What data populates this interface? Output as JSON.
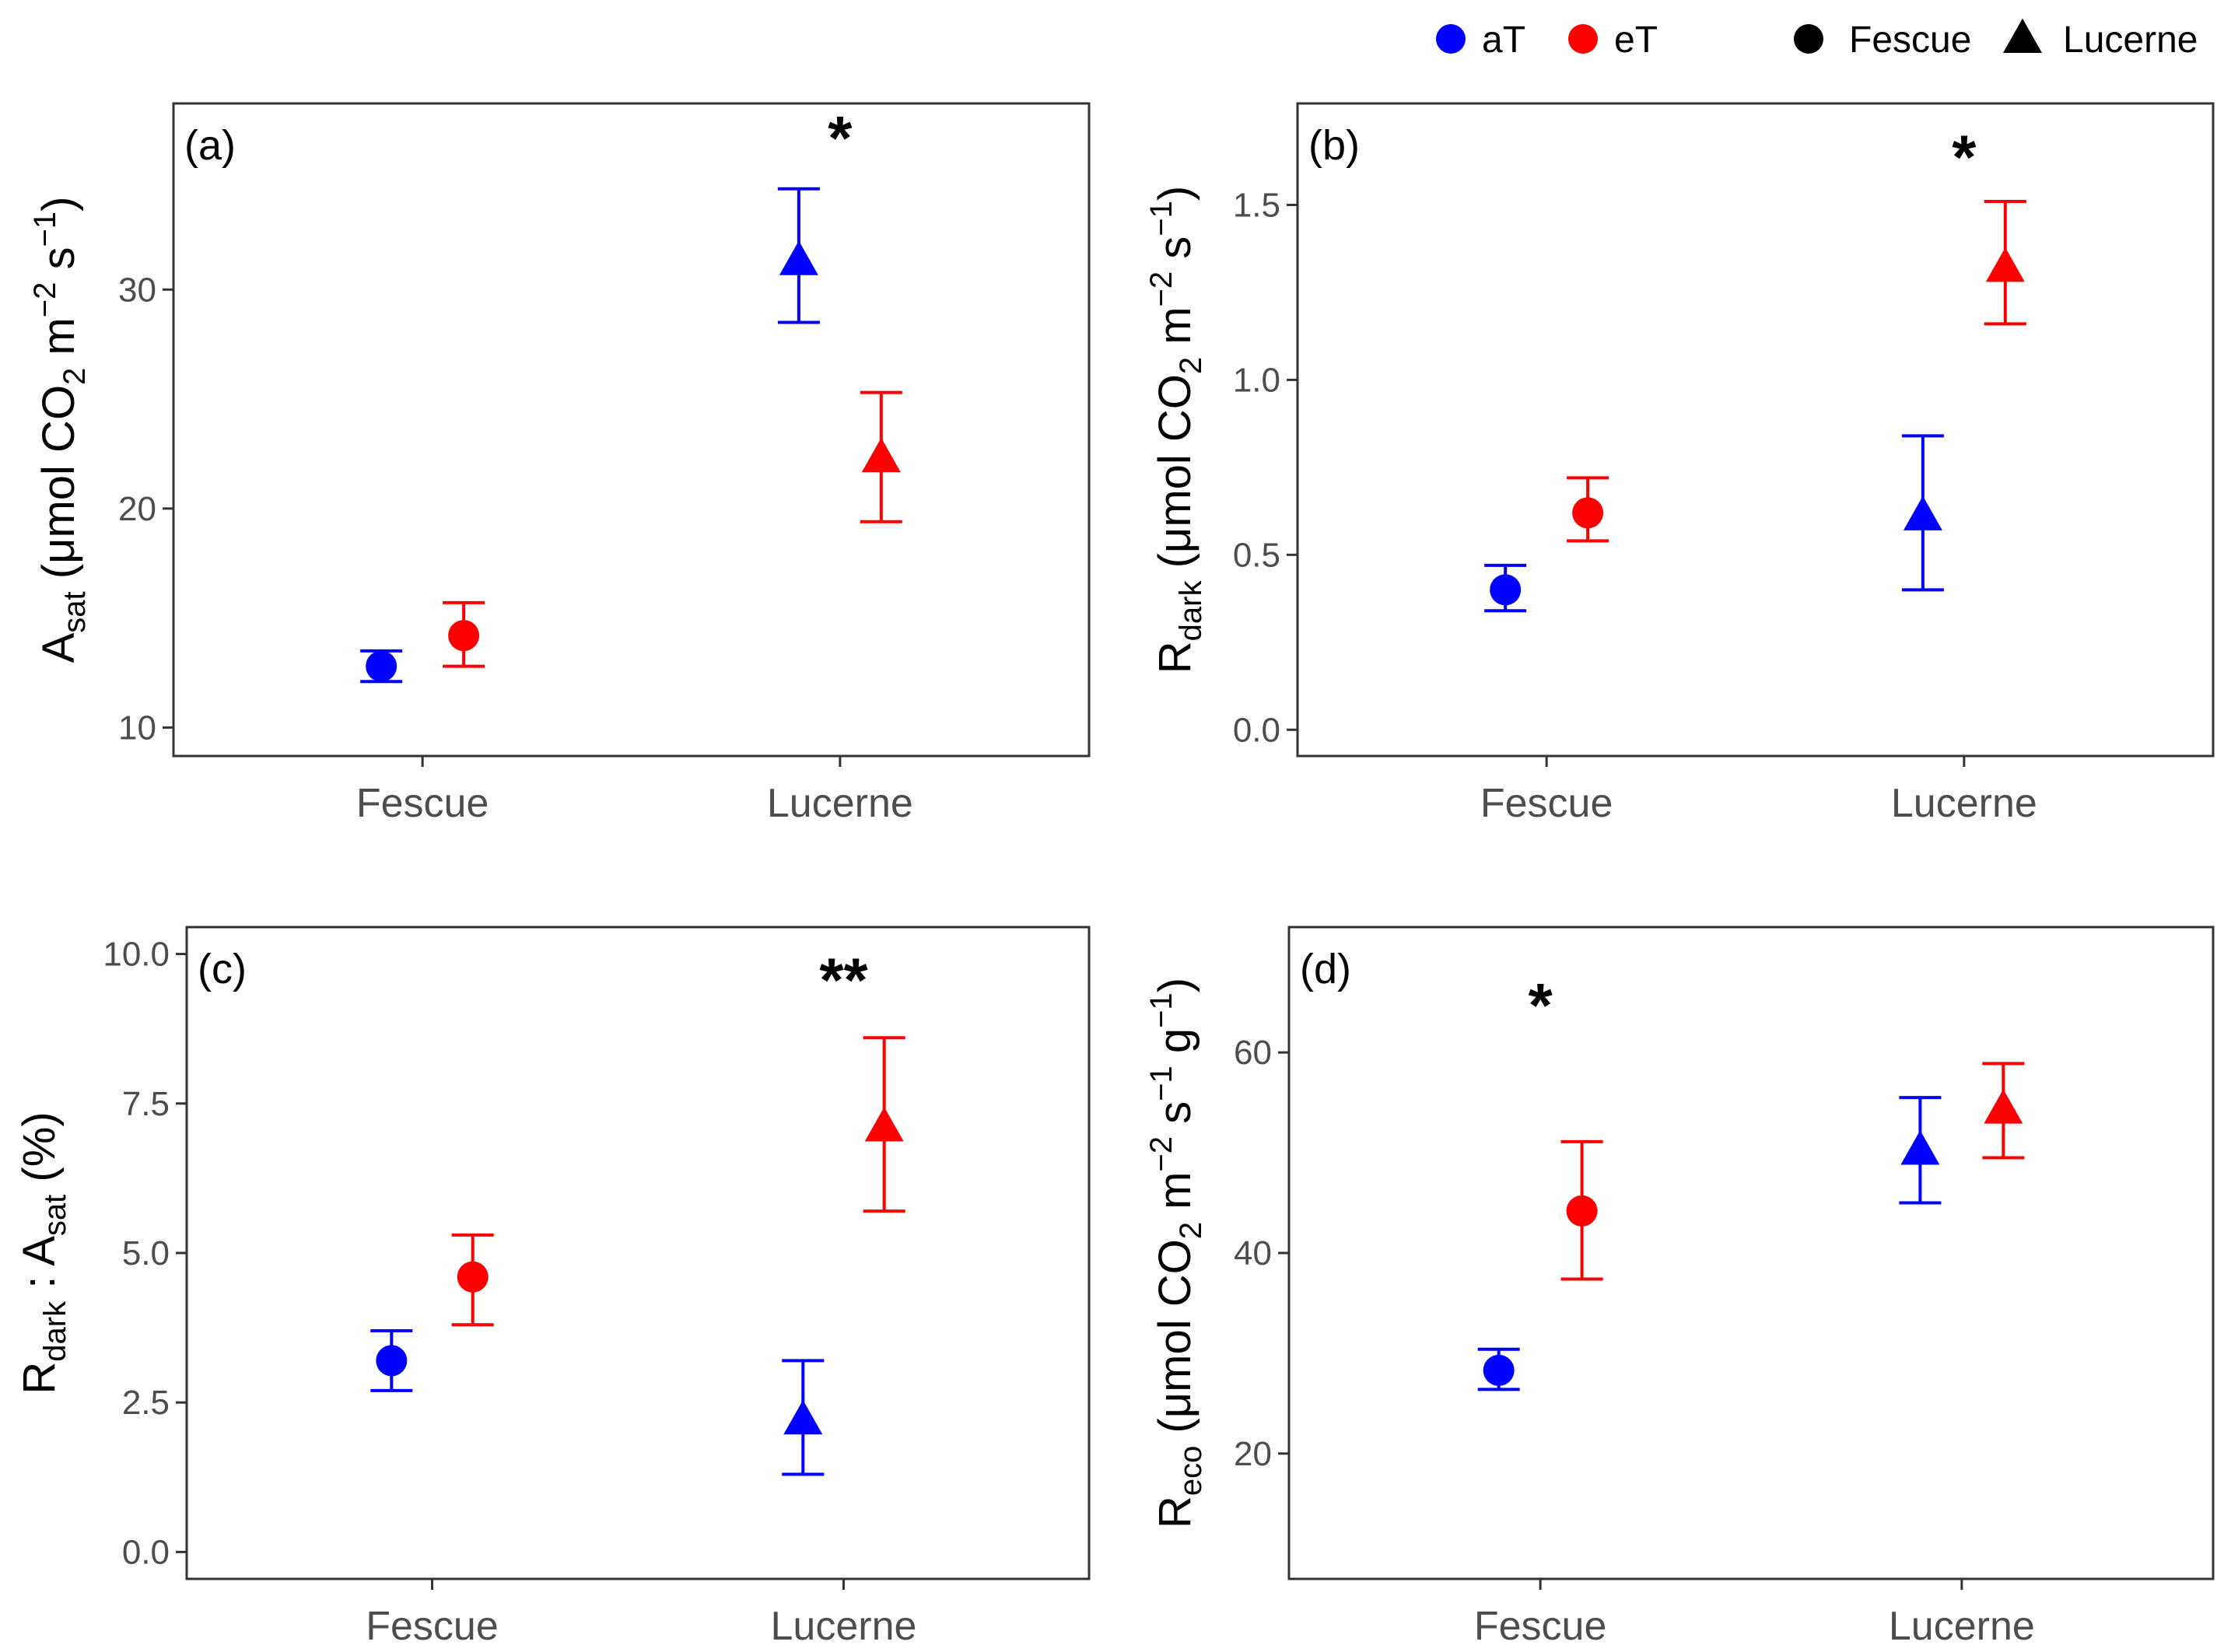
{
  "legend": {
    "temperature": [
      {
        "label": "aT",
        "color": "#0000FF"
      },
      {
        "label": "eT",
        "color": "#FF0000"
      }
    ],
    "species": [
      {
        "label": "Fescue",
        "shape": "circle"
      },
      {
        "label": "Lucerne",
        "shape": "triangle"
      }
    ]
  },
  "chart_data": [
    {
      "type": "scatter",
      "panel": "(a)",
      "categories": [
        "Fescue",
        "Lucerne"
      ],
      "ylabel": {
        "main": "A",
        "sub": "sat",
        "unit_open": " (μmol CO",
        "unit_sub2": "2",
        "unit_m": " m",
        "unit_m_exp": "−2",
        "unit_s": " s",
        "unit_s_exp": "−1",
        "unit_g": "",
        "unit_g_exp": "",
        "unit_close": ")"
      },
      "ylim": [
        8.7,
        38.5
      ],
      "yticks": [
        10,
        20,
        30
      ],
      "ytick_labels": [
        "10",
        "20",
        "30"
      ],
      "series": [
        {
          "name": "aT",
          "color": "#0000FF",
          "points": [
            {
              "category": "Fescue",
              "mean": 12.8,
              "low": 12.1,
              "high": 13.5
            },
            {
              "category": "Lucerne",
              "mean": 31.3,
              "low": 28.5,
              "high": 34.6
            }
          ]
        },
        {
          "name": "eT",
          "color": "#FF0000",
          "points": [
            {
              "category": "Fescue",
              "mean": 14.2,
              "low": 12.8,
              "high": 15.7
            },
            {
              "category": "Lucerne",
              "mean": 22.3,
              "low": 19.4,
              "high": 25.3
            }
          ]
        }
      ],
      "annotations": [
        {
          "category": "Lucerne",
          "text": "*",
          "y": 37.3
        }
      ]
    },
    {
      "type": "scatter",
      "panel": "(b)",
      "categories": [
        "Fescue",
        "Lucerne"
      ],
      "ylabel": {
        "main": "R",
        "sub": "dark",
        "unit_open": " (μmol CO",
        "unit_sub2": "2",
        "unit_m": " m",
        "unit_m_exp": "−2",
        "unit_s": " s",
        "unit_s_exp": "−1",
        "unit_g": "",
        "unit_g_exp": "",
        "unit_close": ")"
      },
      "ylim": [
        -0.075,
        1.79
      ],
      "yticks": [
        0,
        0.5,
        1.0,
        1.5
      ],
      "ytick_labels": [
        "0.0",
        "0.5",
        "1.0",
        "1.5"
      ],
      "series": [
        {
          "name": "aT",
          "color": "#0000FF",
          "points": [
            {
              "category": "Fescue",
              "mean": 0.4,
              "low": 0.34,
              "high": 0.47
            },
            {
              "category": "Lucerne",
              "mean": 0.61,
              "low": 0.4,
              "high": 0.84
            }
          ]
        },
        {
          "name": "eT",
          "color": "#FF0000",
          "points": [
            {
              "category": "Fescue",
              "mean": 0.62,
              "low": 0.54,
              "high": 0.72
            },
            {
              "category": "Lucerne",
              "mean": 1.32,
              "low": 1.16,
              "high": 1.51
            }
          ]
        }
      ],
      "annotations": [
        {
          "category": "Lucerne",
          "text": "*",
          "y": 1.66
        }
      ]
    },
    {
      "type": "scatter",
      "panel": "(c)",
      "categories": [
        "Fescue",
        "Lucerne"
      ],
      "ylabel": {
        "main": "R",
        "sub": "dark",
        "mid": " : A",
        "sub2": "sat",
        "end": " (%)"
      },
      "ylim": [
        -0.45,
        10.45
      ],
      "yticks": [
        0,
        2.5,
        5.0,
        7.5,
        10.0
      ],
      "ytick_labels": [
        "0.0",
        "2.5",
        "5.0",
        "7.5",
        "10.0"
      ],
      "series": [
        {
          "name": "aT",
          "color": "#0000FF",
          "points": [
            {
              "category": "Fescue",
              "mean": 3.2,
              "low": 2.7,
              "high": 3.7
            },
            {
              "category": "Lucerne",
              "mean": 2.2,
              "low": 1.3,
              "high": 3.2
            }
          ]
        },
        {
          "name": "eT",
          "color": "#FF0000",
          "points": [
            {
              "category": "Fescue",
              "mean": 4.6,
              "low": 3.8,
              "high": 5.3
            },
            {
              "category": "Lucerne",
              "mean": 7.1,
              "low": 5.7,
              "high": 8.6
            }
          ]
        }
      ],
      "annotations": [
        {
          "category": "Lucerne",
          "text": "**",
          "y": 9.7
        }
      ]
    },
    {
      "type": "scatter",
      "panel": "(d)",
      "categories": [
        "Fescue",
        "Lucerne"
      ],
      "ylabel": {
        "main": "R",
        "sub": "eco",
        "unit_open": " (μmol CO",
        "unit_sub2": "2",
        "unit_m": " m",
        "unit_m_exp": "−2",
        "unit_s": " s",
        "unit_s_exp": "−1",
        "unit_g": " g",
        "unit_g_exp": "−1",
        "unit_close": ")"
      },
      "ylim": [
        7.5,
        72.5
      ],
      "yticks": [
        20,
        40,
        60
      ],
      "ytick_labels": [
        "20",
        "40",
        "60"
      ],
      "series": [
        {
          "name": "aT",
          "color": "#0000FF",
          "points": [
            {
              "category": "Fescue",
              "mean": 28.3,
              "low": 26.4,
              "high": 30.4
            },
            {
              "category": "Lucerne",
              "mean": 50.2,
              "low": 45.0,
              "high": 55.5
            }
          ]
        },
        {
          "name": "eT",
          "color": "#FF0000",
          "points": [
            {
              "category": "Fescue",
              "mean": 44.2,
              "low": 37.4,
              "high": 51.1
            },
            {
              "category": "Lucerne",
              "mean": 54.3,
              "low": 49.5,
              "high": 58.9
            }
          ]
        }
      ],
      "annotations": [
        {
          "category": "Fescue",
          "text": "*",
          "y": 65.5
        }
      ]
    }
  ]
}
